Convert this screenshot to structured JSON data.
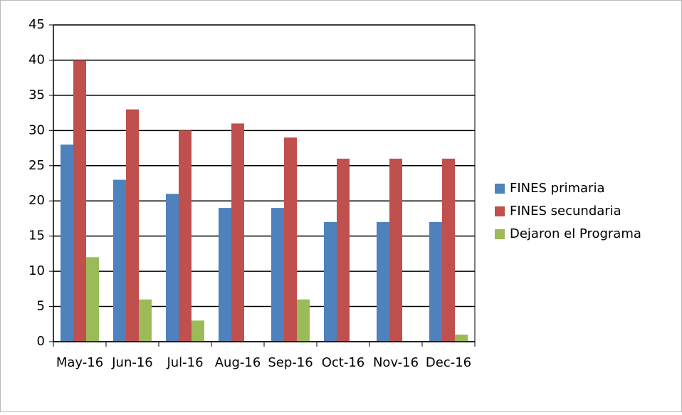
{
  "chart_data": {
    "type": "bar",
    "categories": [
      "May-16",
      "Jun-16",
      "Jul-16",
      "Aug-16",
      "Sep-16",
      "Oct-16",
      "Nov-16",
      "Dec-16"
    ],
    "series": [
      {
        "name": "FINES primaria",
        "color": "#4f81bd",
        "values": [
          28,
          23,
          21,
          19,
          19,
          17,
          17,
          17
        ]
      },
      {
        "name": "FINES secundaria",
        "color": "#c0504d",
        "values": [
          40,
          33,
          30,
          31,
          29,
          26,
          26,
          26
        ]
      },
      {
        "name": "Dejaron el Programa",
        "color": "#9bbb59",
        "values": [
          12,
          6,
          3,
          0,
          6,
          0,
          0,
          1
        ]
      }
    ],
    "ylim": [
      0,
      45
    ],
    "yticks": [
      0,
      5,
      10,
      15,
      20,
      25,
      30,
      35,
      40,
      45
    ],
    "grid": true,
    "legend": "right"
  }
}
